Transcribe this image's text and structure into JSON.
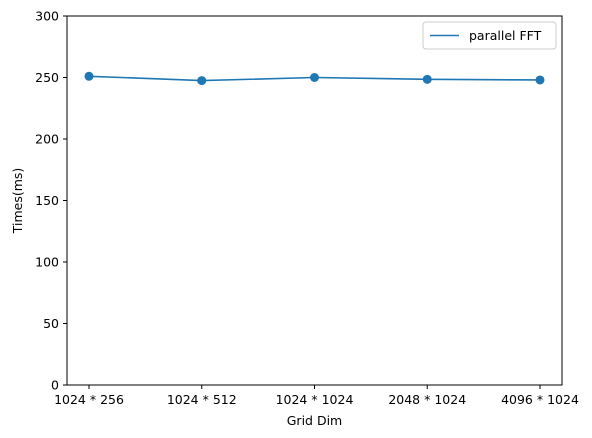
{
  "chart_data": {
    "type": "line",
    "categories": [
      "1024 * 256",
      "1024 * 512",
      "1024 * 1024",
      "2048 * 1024",
      "4096 * 1024"
    ],
    "series": [
      {
        "name": "parallel FFT",
        "values": [
          251,
          247.5,
          250,
          248.5,
          248
        ],
        "color": "#1f77b4",
        "markers": true
      }
    ],
    "xlabel": "Grid Dim",
    "ylabel": "Times(ms)",
    "ylim": [
      0,
      300
    ],
    "yticks": [
      0,
      50,
      100,
      150,
      200,
      250,
      300
    ],
    "grid": false,
    "legend": "top-right"
  }
}
